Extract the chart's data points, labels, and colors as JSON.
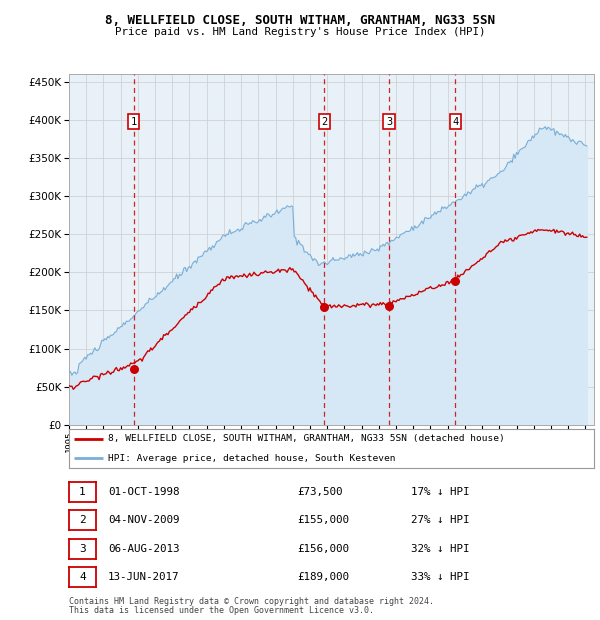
{
  "title": "8, WELLFIELD CLOSE, SOUTH WITHAM, GRANTHAM, NG33 5SN",
  "subtitle": "Price paid vs. HM Land Registry's House Price Index (HPI)",
  "legend_line1": "8, WELLFIELD CLOSE, SOUTH WITHAM, GRANTHAM, NG33 5SN (detached house)",
  "legend_line2": "HPI: Average price, detached house, South Kesteven",
  "footer1": "Contains HM Land Registry data © Crown copyright and database right 2024.",
  "footer2": "This data is licensed under the Open Government Licence v3.0.",
  "red_color": "#cc0000",
  "blue_color": "#7aaed6",
  "fill_color": "#d6e8f5",
  "plot_bg": "#e8f0f8",
  "grid_color": "#cccccc",
  "ylim": [
    0,
    460000
  ],
  "yticks": [
    0,
    50000,
    100000,
    150000,
    200000,
    250000,
    300000,
    350000,
    400000,
    450000
  ],
  "xlim_start": 1995.0,
  "xlim_end": 2025.5,
  "transactions": [
    {
      "num": 1,
      "date_str": "01-OCT-1998",
      "year": 1998.75,
      "price": 73500,
      "pct": "17% ↓ HPI"
    },
    {
      "num": 2,
      "date_str": "04-NOV-2009",
      "year": 2009.84,
      "price": 155000,
      "pct": "27% ↓ HPI"
    },
    {
      "num": 3,
      "date_str": "06-AUG-2013",
      "year": 2013.59,
      "price": 156000,
      "pct": "32% ↓ HPI"
    },
    {
      "num": 4,
      "date_str": "13-JUN-2017",
      "year": 2017.44,
      "price": 189000,
      "pct": "33% ↓ HPI"
    }
  ],
  "table_rows": [
    [
      "1",
      "01-OCT-1998",
      "£73,500",
      "17% ↓ HPI"
    ],
    [
      "2",
      "04-NOV-2009",
      "£155,000",
      "27% ↓ HPI"
    ],
    [
      "3",
      "06-AUG-2013",
      "£156,000",
      "32% ↓ HPI"
    ],
    [
      "4",
      "13-JUN-2017",
      "£189,000",
      "33% ↓ HPI"
    ]
  ]
}
